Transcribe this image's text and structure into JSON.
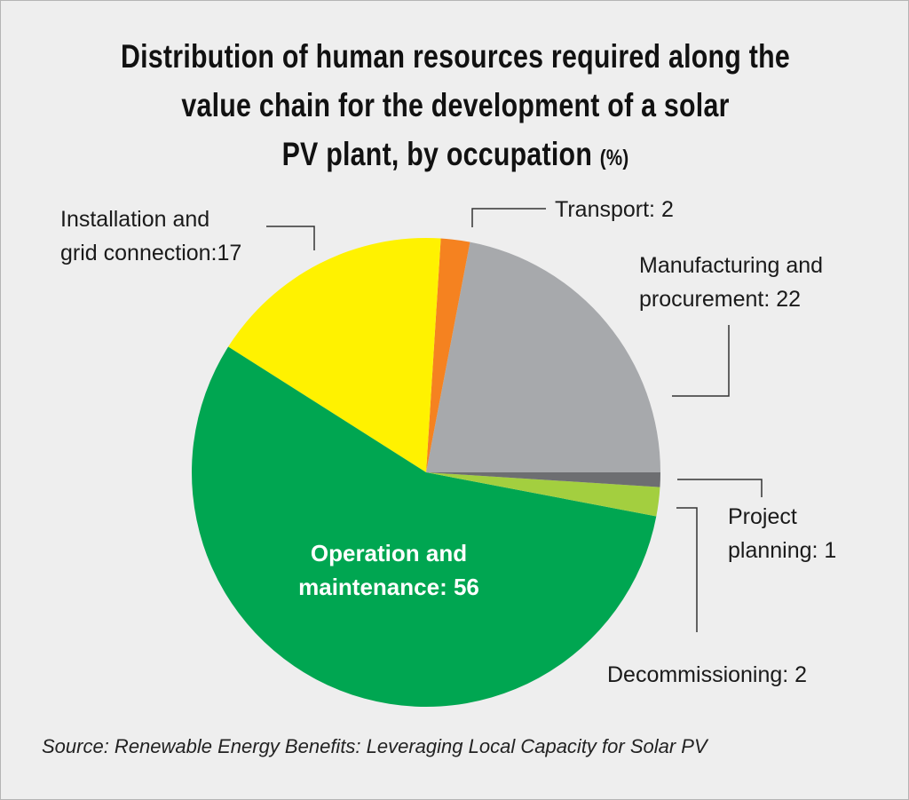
{
  "title": {
    "line1": "Distribution of human resources required along the",
    "line2": "value chain for the development of a solar",
    "line3": "PV plant, by occupation",
    "unit": "(%)"
  },
  "source": "Source: Renewable Energy Benefits: Leveraging Local Capacity for Solar PV",
  "chart_data": {
    "type": "pie",
    "title": "Distribution of human resources required along the value chain for the development of a solar PV plant, by occupation (%)",
    "unit": "%",
    "start_angle_deg": 0,
    "direction": "counterclockwise",
    "slices": [
      {
        "name": "Manufacturing and procurement",
        "value": 22,
        "color": "#a7a9ac",
        "label_lines": [
          "Manufacturing and",
          "procurement: 22"
        ]
      },
      {
        "name": "Transport",
        "value": 2,
        "color": "#f58220",
        "label_lines": [
          "Transport: 2"
        ]
      },
      {
        "name": "Installation and grid connection",
        "value": 17,
        "color": "#fff200",
        "label_lines": [
          "Installation and",
          "grid connection:17"
        ]
      },
      {
        "name": "Operation and maintenance",
        "value": 56,
        "color": "#00a651",
        "label_lines": [
          "Operation and",
          "maintenance: 56"
        ]
      },
      {
        "name": "Decommissioning",
        "value": 2,
        "color": "#a3cf3f",
        "label_lines": [
          "Decommissioning: 2"
        ]
      },
      {
        "name": "Project planning",
        "value": 1,
        "color": "#6d6e71",
        "label_lines": [
          "Project",
          "planning: 1"
        ]
      }
    ]
  }
}
